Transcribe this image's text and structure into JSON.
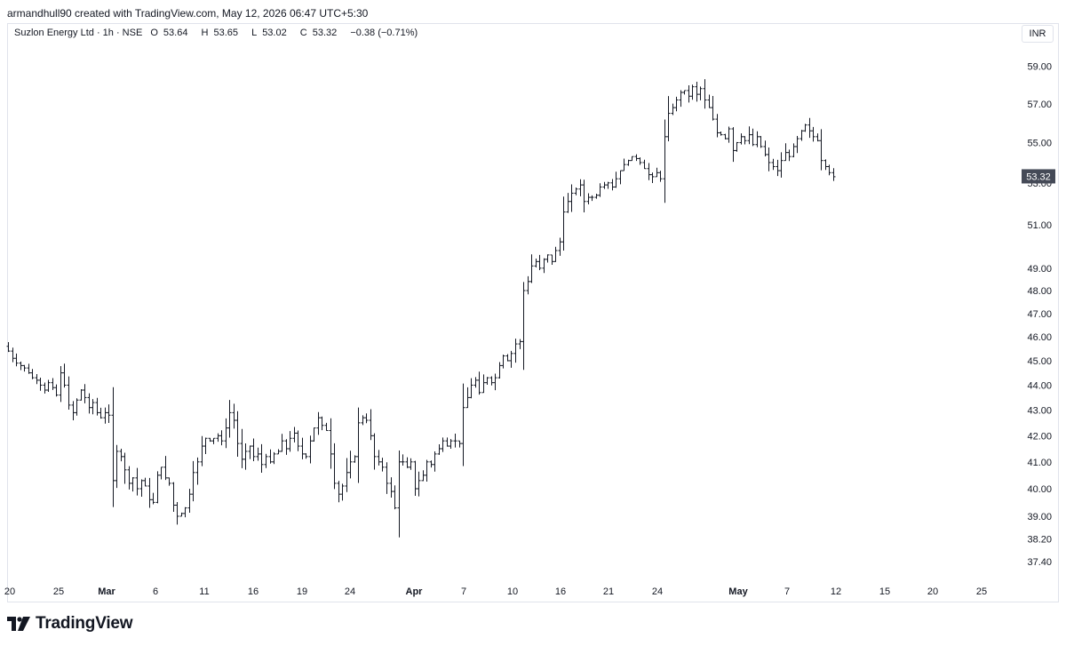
{
  "header": {
    "attribution": "armandhull90 created with TradingView.com, May 12, 2026 06:47 UTC+5:30"
  },
  "legend": {
    "symbol": "Suzlon Energy Ltd · 1h · NSE",
    "open_label": "O",
    "open": "53.64",
    "high_label": "H",
    "high": "53.65",
    "low_label": "L",
    "low": "53.02",
    "close_label": "C",
    "close": "53.32",
    "change": "−0.38 (−0.71%)"
  },
  "currency": "INR",
  "footer": {
    "brand": "TradingView"
  },
  "colors": {
    "bars": "#131722",
    "grid_border": "#e0e3eb",
    "last_price_bg": "#454a57",
    "last_price_text": "#ffffff"
  },
  "chart_data": {
    "type": "ohlc",
    "scale": "log",
    "ylim": [
      36.8,
      60.2
    ],
    "y_ticks": [
      "59.00",
      "57.00",
      "55.00",
      "53.00",
      "51.00",
      "49.00",
      "48.00",
      "47.00",
      "46.00",
      "45.00",
      "44.00",
      "43.00",
      "42.00",
      "41.00",
      "40.00",
      "39.00",
      "38.20",
      "37.40"
    ],
    "x_ticks": [
      {
        "label": "20",
        "month": false
      },
      {
        "label": "25",
        "month": false
      },
      {
        "label": "Mar",
        "month": true
      },
      {
        "label": "6",
        "month": false
      },
      {
        "label": "11",
        "month": false
      },
      {
        "label": "16",
        "month": false
      },
      {
        "label": "19",
        "month": false
      },
      {
        "label": "24",
        "month": false
      },
      {
        "label": "Apr",
        "month": true
      },
      {
        "label": "7",
        "month": false
      },
      {
        "label": "10",
        "month": false
      },
      {
        "label": "16",
        "month": false
      },
      {
        "label": "21",
        "month": false
      },
      {
        "label": "24",
        "month": false
      },
      {
        "label": "May",
        "month": true
      },
      {
        "label": "7",
        "month": false
      },
      {
        "label": "12",
        "month": false
      },
      {
        "label": "15",
        "month": false
      },
      {
        "label": "20",
        "month": false
      },
      {
        "label": "25",
        "month": false
      }
    ],
    "last_price": "53.32",
    "closes": [
      45.4,
      45.1,
      44.9,
      44.8,
      44.7,
      44.5,
      44.3,
      44.2,
      44.0,
      43.8,
      44.1,
      43.9,
      43.6,
      44.5,
      44.0,
      43.2,
      42.9,
      43.4,
      43.8,
      43.5,
      43.1,
      43.3,
      42.9,
      42.7,
      42.9,
      42.8,
      40.3,
      41.4,
      41.2,
      40.7,
      40.2,
      40.4,
      40.0,
      40.3,
      40.1,
      39.6,
      39.5,
      40.5,
      40.8,
      40.4,
      40.2,
      39.4,
      39.0,
      39.1,
      39.3,
      39.8,
      40.6,
      41.0,
      41.6,
      41.9,
      41.8,
      41.9,
      42.0,
      41.8,
      42.3,
      42.9,
      42.6,
      41.7,
      41.1,
      41.4,
      41.6,
      41.2,
      41.3,
      40.9,
      41.2,
      41.0,
      41.3,
      41.4,
      41.8,
      41.5,
      41.9,
      42.1,
      41.6,
      41.3,
      41.2,
      41.8,
      42.3,
      42.7,
      42.4,
      42.2,
      41.3,
      40.2,
      39.8,
      40.1,
      40.6,
      41.0,
      41.2,
      42.5,
      42.7,
      42.6,
      42.0,
      41.2,
      41.0,
      40.8,
      40.2,
      39.9,
      39.3,
      41.0,
      41.0,
      40.8,
      41.0,
      40.0,
      40.3,
      40.5,
      41.0,
      40.9,
      41.3,
      41.5,
      41.8,
      41.6,
      41.8,
      41.8,
      41.7,
      43.1,
      43.5,
      44.0,
      44.2,
      43.7,
      44.1,
      44.3,
      44.1,
      44.3,
      44.8,
      45.2,
      45.0,
      45.3,
      45.7,
      45.8,
      48.0,
      48.4,
      49.1,
      49.3,
      49.0,
      49.4,
      49.6,
      49.3,
      49.8,
      50.2,
      51.6,
      52.1,
      52.5,
      52.7,
      52.9,
      52.1,
      52.3,
      52.3,
      52.4,
      52.8,
      52.9,
      53.0,
      52.8,
      53.2,
      53.6,
      53.9,
      54.1,
      54.3,
      54.2,
      54.0,
      53.7,
      53.4,
      53.3,
      53.5,
      53.2,
      55.3,
      56.5,
      56.8,
      57.2,
      57.6,
      57.7,
      57.4,
      57.9,
      57.5,
      57.8,
      57.2,
      56.8,
      56.2,
      55.5,
      55.4,
      55.2,
      55.7,
      54.6,
      55.0,
      55.3,
      55.1,
      55.4,
      54.9,
      55.3,
      54.8,
      54.4,
      54.0,
      53.8,
      53.6,
      54.1,
      54.5,
      54.3,
      54.8,
      55.2,
      55.6,
      55.9,
      55.6,
      55.3,
      55.1,
      54.1,
      53.8,
      53.5,
      53.3
    ]
  }
}
